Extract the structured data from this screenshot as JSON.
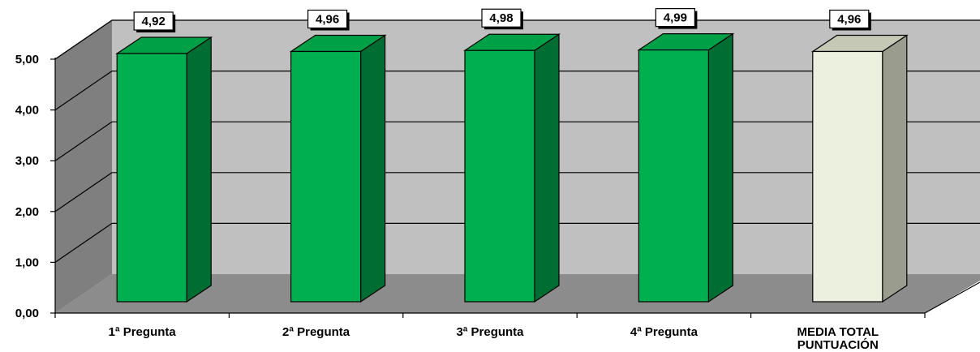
{
  "chart_data": {
    "type": "bar",
    "categories": [
      "1ª Pregunta",
      "2ª Pregunta",
      "3ª Pregunta",
      "4ª Pregunta",
      "MEDIA TOTAL PUNTUACIÓN"
    ],
    "values": [
      4.92,
      4.96,
      4.98,
      4.99,
      4.96
    ],
    "data_labels": [
      "4,92",
      "4,96",
      "4,98",
      "4,99",
      "4,96"
    ],
    "y_ticks": [
      0,
      1,
      2,
      3,
      4,
      5
    ],
    "y_tick_labels": [
      "0,00",
      "1,00",
      "2,00",
      "3,00",
      "4,00",
      "5,00"
    ],
    "ylim": [
      0,
      5
    ],
    "title": "",
    "xlabel": "",
    "ylabel": "",
    "grid": true,
    "three_d": true,
    "colors": {
      "bar_front": "#00b050",
      "bar_top": "#00a046",
      "bar_side": "#006e32",
      "highlight_front": "#ebf1de",
      "highlight_top": "#c4c8b4",
      "highlight_side": "#9a9c8e",
      "back_wall": "#c0c0c0",
      "side_wall": "#7f7f7f",
      "floor": "#8c8c8c",
      "gridline": "#000000"
    },
    "highlight_index": 4
  }
}
